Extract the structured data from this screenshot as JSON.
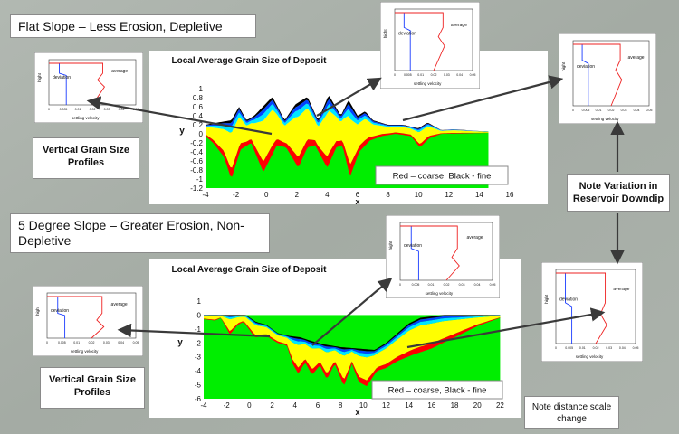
{
  "section_top": {
    "title": "Flat Slope – Less Erosion, Depletive",
    "chart_heading": "Local Average Grain Size of Deposit",
    "legend_note": "Red – coarse, Black - fine"
  },
  "section_bottom": {
    "title": "5 Degree Slope – Greater Erosion, Non-Depletive",
    "chart_heading": "Local Average Grain Size of Deposit",
    "legend_note": "Red – coarse, Black - fine"
  },
  "captions": {
    "profiles_top": "Vertical Grain Size Profiles",
    "profiles_bottom": "Vertical Grain Size Profiles",
    "variation": "Note Variation in Reservoir Downdip",
    "distance": "Note distance scale change"
  },
  "colors": {
    "green": "#00ee00",
    "yellow": "#ffff00",
    "red": "#ff0000",
    "cyan": "#00e5ff",
    "blue": "#0044ff",
    "black": "#000000",
    "arrow": "#3a3a3a",
    "profile_blue": "#1a3cff",
    "profile_red": "#ee2222"
  },
  "chart_data": [
    {
      "type": "area",
      "xlabel": "x",
      "ylabel": "y",
      "xlim": [
        -4,
        16
      ],
      "ylim": [
        -1.2,
        1
      ],
      "xticks": [
        -4,
        -2,
        0,
        2,
        4,
        6,
        8,
        10,
        12,
        14,
        16
      ],
      "yticks": [
        1,
        0.8,
        0.6,
        0.4,
        0.2,
        0,
        -0.2,
        -0.4,
        -0.6,
        -0.8,
        -1,
        -1.2
      ],
      "base_level": 0.05,
      "surface": [
        [
          -4,
          0.2
        ],
        [
          -3.2,
          0.25
        ],
        [
          -2.3,
          0.3
        ],
        [
          -1.8,
          0.6
        ],
        [
          -1.3,
          0.3
        ],
        [
          -0.8,
          0.4
        ],
        [
          0.4,
          0.82
        ],
        [
          1.2,
          0.3
        ],
        [
          1.9,
          0.65
        ],
        [
          2.7,
          0.82
        ],
        [
          3.4,
          0.3
        ],
        [
          4.1,
          0.86
        ],
        [
          4.9,
          0.4
        ],
        [
          5.4,
          0.75
        ],
        [
          6,
          0.4
        ],
        [
          6.5,
          0.5
        ],
        [
          7,
          0.3
        ],
        [
          8,
          0.2
        ],
        [
          9,
          0.2
        ],
        [
          10,
          0.12
        ],
        [
          10.6,
          0.25
        ],
        [
          11.5,
          0.08
        ],
        [
          12.3,
          0.1
        ],
        [
          14,
          0.06
        ],
        [
          14.6,
          0.05
        ]
      ],
      "bottom": [
        [
          -4,
          -0.05
        ],
        [
          -3.5,
          -0.2
        ],
        [
          -2.8,
          -0.5
        ],
        [
          -2.3,
          -1.0
        ],
        [
          -1.7,
          -0.35
        ],
        [
          -1,
          -0.2
        ],
        [
          -0.2,
          -0.85
        ],
        [
          0.7,
          -0.25
        ],
        [
          1.3,
          -0.3
        ],
        [
          2.1,
          -0.75
        ],
        [
          2.7,
          -0.3
        ],
        [
          3.2,
          -0.25
        ],
        [
          4,
          -0.75
        ],
        [
          4.6,
          -0.3
        ],
        [
          5,
          -0.25
        ],
        [
          5.5,
          -0.95
        ],
        [
          6.1,
          -0.4
        ],
        [
          6.8,
          -0.15
        ],
        [
          7.6,
          -0.05
        ],
        [
          8.5,
          0
        ],
        [
          9.5,
          -0.05
        ],
        [
          10.1,
          -0.3
        ],
        [
          10.7,
          -0.1
        ],
        [
          11.5,
          0
        ],
        [
          14.6,
          0.02
        ]
      ]
    },
    {
      "type": "area",
      "xlabel": "x",
      "ylabel": "y",
      "xlim": [
        -4,
        23
      ],
      "ylim": [
        -6,
        1
      ],
      "xticks": [
        -4,
        -2,
        0,
        2,
        4,
        6,
        8,
        10,
        12,
        14,
        16,
        18,
        20,
        22
      ],
      "yticks": [
        1,
        0,
        -1,
        -2,
        -3,
        -4,
        -5,
        -6
      ],
      "base_level": 0,
      "surface": [
        [
          -4,
          0
        ],
        [
          -3.2,
          0
        ],
        [
          -2.2,
          0
        ],
        [
          -1.6,
          0
        ],
        [
          -1.1,
          0
        ],
        [
          -0.3,
          0
        ],
        [
          0.6,
          -0.5
        ],
        [
          1.5,
          -0.7
        ],
        [
          2.5,
          -1.3
        ],
        [
          3.5,
          -1.5
        ],
        [
          4.5,
          -1.6
        ],
        [
          5.2,
          -1.8
        ],
        [
          6.5,
          -2.1
        ],
        [
          8,
          -2.3
        ],
        [
          9.5,
          -2.4
        ],
        [
          11,
          -2.5
        ],
        [
          12,
          -2
        ],
        [
          13,
          -1.3
        ],
        [
          14,
          -0.6
        ],
        [
          15,
          -0.2
        ],
        [
          16,
          -0.1
        ],
        [
          17,
          0
        ],
        [
          19,
          0
        ],
        [
          22,
          0
        ]
      ],
      "bottom": [
        [
          -4,
          -0.3
        ],
        [
          -3,
          -0.4
        ],
        [
          -2.5,
          -0.2
        ],
        [
          -1.7,
          -1.4
        ],
        [
          -1,
          -0.7
        ],
        [
          -0.5,
          -0.5
        ],
        [
          0.5,
          -1.6
        ],
        [
          1.5,
          -1.5
        ],
        [
          2.5,
          -2
        ],
        [
          3.3,
          -2.2
        ],
        [
          3.8,
          -3.5
        ],
        [
          4.3,
          -4.2
        ],
        [
          4.9,
          -3.4
        ],
        [
          5.5,
          -4.3
        ],
        [
          6.2,
          -3.6
        ],
        [
          6.8,
          -4.6
        ],
        [
          7.5,
          -3.5
        ],
        [
          8.3,
          -5.1
        ],
        [
          9,
          -3.5
        ],
        [
          9.6,
          -4.8
        ],
        [
          10.3,
          -5.1
        ],
        [
          11.2,
          -4
        ],
        [
          12,
          -3.8
        ],
        [
          13,
          -3.3
        ],
        [
          14.5,
          -2.8
        ],
        [
          16,
          -2.4
        ],
        [
          18,
          -1.6
        ],
        [
          20,
          -0.8
        ],
        [
          22,
          -0.2
        ]
      ]
    }
  ],
  "profiles": {
    "xlabel": "settling velocity",
    "ylabel": "hight",
    "deviation_label": "deviation",
    "average_label": "average",
    "xticks_top": [
      "0",
      "0.005",
      "0.01",
      "0.02",
      "0.03",
      "0.04",
      "0.05"
    ],
    "xticks_bottom": [
      "0",
      "0.005",
      "0.01",
      "0.02",
      "0.03",
      "0.04",
      "0.05"
    ]
  }
}
